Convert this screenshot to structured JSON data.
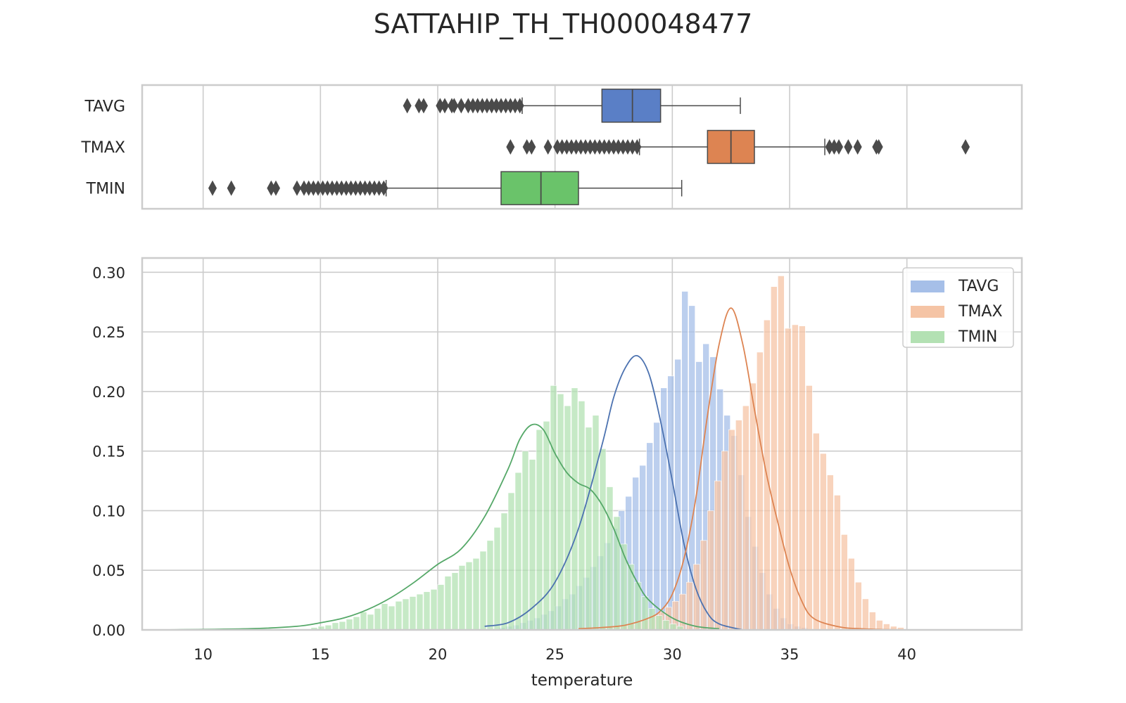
{
  "title": "SATTAHIP_TH_TH000048477",
  "chart_data": [
    {
      "type": "box",
      "orientation": "horizontal",
      "categories": [
        "TAVG",
        "TMAX",
        "TMIN"
      ],
      "xlim": [
        7.4,
        44.9
      ],
      "x_ticks": [
        10,
        15,
        20,
        25,
        30,
        35,
        40
      ],
      "grid": true,
      "boxes": [
        {
          "name": "TAVG",
          "color": "#5a7fc6",
          "whisker_low": 23.6,
          "q1": 27.0,
          "median": 28.3,
          "q3": 29.5,
          "whisker_high": 32.9,
          "outliers": [
            18.7,
            19.2,
            19.4,
            20.1,
            20.3,
            20.6,
            20.7,
            21.0,
            21.3,
            21.5,
            21.7,
            21.9,
            22.1,
            22.3,
            22.5,
            22.7,
            22.9,
            23.1,
            23.3,
            23.5
          ]
        },
        {
          "name": "TMAX",
          "color": "#dd8452",
          "whisker_low": 28.6,
          "q1": 31.5,
          "median": 32.5,
          "q3": 33.5,
          "whisker_high": 36.5,
          "outliers": [
            23.1,
            23.8,
            24.0,
            24.7,
            25.1,
            25.3,
            25.5,
            25.7,
            25.9,
            26.1,
            26.3,
            26.5,
            26.7,
            26.9,
            27.1,
            27.3,
            27.5,
            27.7,
            27.9,
            28.1,
            28.3,
            28.5,
            36.7,
            36.9,
            37.1,
            37.5,
            37.9,
            38.7,
            38.8,
            42.5
          ]
        },
        {
          "name": "TMIN",
          "color": "#6ac36a",
          "whisker_low": 17.8,
          "q1": 22.7,
          "median": 24.4,
          "q3": 26.0,
          "whisker_high": 30.4,
          "outliers": [
            10.4,
            11.2,
            12.9,
            13.1,
            14.0,
            14.3,
            14.5,
            14.7,
            14.9,
            15.1,
            15.3,
            15.5,
            15.7,
            15.9,
            16.1,
            16.3,
            16.5,
            16.7,
            16.9,
            17.1,
            17.3,
            17.5,
            17.7
          ]
        }
      ]
    },
    {
      "type": "histogram+kde",
      "xlabel": "temperature",
      "ylabel": "",
      "xlim": [
        7.4,
        44.9
      ],
      "ylim": [
        0,
        0.312
      ],
      "x_ticks": [
        10,
        15,
        20,
        25,
        30,
        35,
        40
      ],
      "y_ticks": [
        "0.00",
        "0.05",
        "0.10",
        "0.15",
        "0.20",
        "0.25",
        "0.30"
      ],
      "grid": true,
      "legend_position": "top-right",
      "bin_width": 0.3,
      "series": [
        {
          "name": "TAVG",
          "color": "#4c72b0",
          "hist_color": "#a6bfe8",
          "bins_start": 22.6,
          "densities": [
            0.002,
            0.003,
            0.004,
            0.006,
            0.008,
            0.01,
            0.013,
            0.016,
            0.02,
            0.026,
            0.03,
            0.037,
            0.044,
            0.053,
            0.062,
            0.073,
            0.085,
            0.1,
            0.112,
            0.128,
            0.138,
            0.157,
            0.174,
            0.203,
            0.213,
            0.227,
            0.284,
            0.272,
            0.225,
            0.24,
            0.229,
            0.202,
            0.18,
            0.163,
            0.13,
            0.095,
            0.07,
            0.048,
            0.03,
            0.018,
            0.01,
            0.005,
            0.003,
            0.002
          ],
          "kde_x": [
            22,
            23,
            24,
            25,
            26,
            27,
            27.5,
            28,
            28.5,
            29,
            29.5,
            30,
            30.5,
            31,
            31.5,
            32,
            33
          ],
          "kde_y": [
            0.003,
            0.006,
            0.018,
            0.04,
            0.085,
            0.155,
            0.195,
            0.22,
            0.23,
            0.215,
            0.175,
            0.125,
            0.072,
            0.035,
            0.014,
            0.005,
            0.0
          ]
        },
        {
          "name": "TMAX",
          "color": "#dd8452",
          "hist_color": "#f5c4a5",
          "bins_start": 27.0,
          "densities": [
            0.002,
            0.003,
            0.003,
            0.004,
            0.005,
            0.007,
            0.009,
            0.012,
            0.015,
            0.019,
            0.024,
            0.03,
            0.04,
            0.055,
            0.075,
            0.1,
            0.125,
            0.15,
            0.168,
            0.176,
            0.188,
            0.207,
            0.233,
            0.26,
            0.288,
            0.297,
            0.253,
            0.256,
            0.255,
            0.205,
            0.165,
            0.148,
            0.13,
            0.113,
            0.08,
            0.06,
            0.04,
            0.026,
            0.015,
            0.008,
            0.005,
            0.003,
            0.002
          ],
          "kde_x": [
            26,
            27,
            28,
            29,
            29.5,
            30,
            30.5,
            31,
            31.5,
            32,
            32.5,
            33,
            33.5,
            34,
            34.5,
            35,
            35.5,
            36,
            37,
            38,
            40,
            43
          ],
          "kde_y": [
            0.001,
            0.002,
            0.004,
            0.01,
            0.016,
            0.03,
            0.06,
            0.11,
            0.18,
            0.24,
            0.27,
            0.24,
            0.185,
            0.132,
            0.09,
            0.052,
            0.025,
            0.01,
            0.003,
            0.001,
            0.0,
            0.0
          ]
        },
        {
          "name": "TMIN",
          "color": "#55a868",
          "hist_color": "#b3e1b3",
          "bins_start": 14.6,
          "densities": [
            0.002,
            0.003,
            0.004,
            0.006,
            0.007,
            0.009,
            0.011,
            0.015,
            0.013,
            0.018,
            0.022,
            0.02,
            0.024,
            0.026,
            0.028,
            0.03,
            0.032,
            0.034,
            0.038,
            0.045,
            0.048,
            0.054,
            0.057,
            0.06,
            0.066,
            0.075,
            0.086,
            0.098,
            0.115,
            0.132,
            0.15,
            0.143,
            0.168,
            0.175,
            0.205,
            0.198,
            0.188,
            0.203,
            0.192,
            0.17,
            0.18,
            0.152,
            0.12,
            0.095,
            0.072,
            0.055,
            0.04,
            0.028,
            0.018,
            0.012,
            0.008,
            0.005,
            0.003
          ],
          "kde_x": [
            8,
            12,
            14,
            15,
            16,
            17,
            18,
            19,
            20,
            21,
            22,
            23,
            23.5,
            24,
            24.5,
            25,
            25.5,
            26,
            26.5,
            27,
            27.5,
            28,
            28.5,
            29,
            30,
            31,
            32
          ],
          "kde_y": [
            0.0,
            0.001,
            0.003,
            0.006,
            0.01,
            0.017,
            0.027,
            0.04,
            0.055,
            0.068,
            0.095,
            0.135,
            0.16,
            0.172,
            0.168,
            0.148,
            0.132,
            0.123,
            0.118,
            0.105,
            0.085,
            0.06,
            0.04,
            0.025,
            0.01,
            0.003,
            0.001
          ]
        }
      ]
    }
  ]
}
